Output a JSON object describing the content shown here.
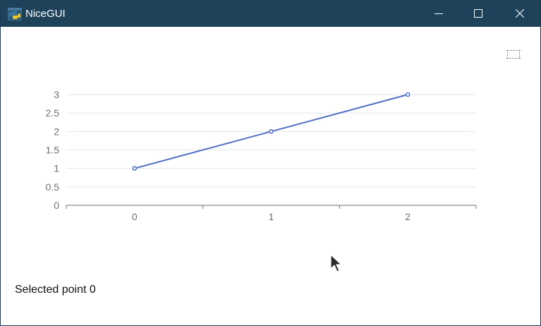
{
  "window": {
    "title": "NiceGUI",
    "icon": "python-logo-icon"
  },
  "titlebar_controls": [
    "minimize-icon",
    "maximize-icon",
    "close-icon"
  ],
  "toolbox": {
    "icon": "select-area-icon"
  },
  "status": {
    "text": "Selected point 0"
  },
  "colors": {
    "titlebar": "#1d4259",
    "series": "#5470c6",
    "grid": "#e0e6f1",
    "axis": "#6e7079",
    "label": "#6e7079"
  },
  "chart_data": {
    "type": "line",
    "categories": [
      "0",
      "1",
      "2"
    ],
    "series": [
      {
        "values": [
          1,
          2,
          3
        ]
      }
    ],
    "y_ticks": [
      "0",
      "0.5",
      "1",
      "1.5",
      "2",
      "2.5",
      "3"
    ],
    "ylim": [
      0,
      3
    ],
    "grid": true,
    "x_axis": "category"
  }
}
